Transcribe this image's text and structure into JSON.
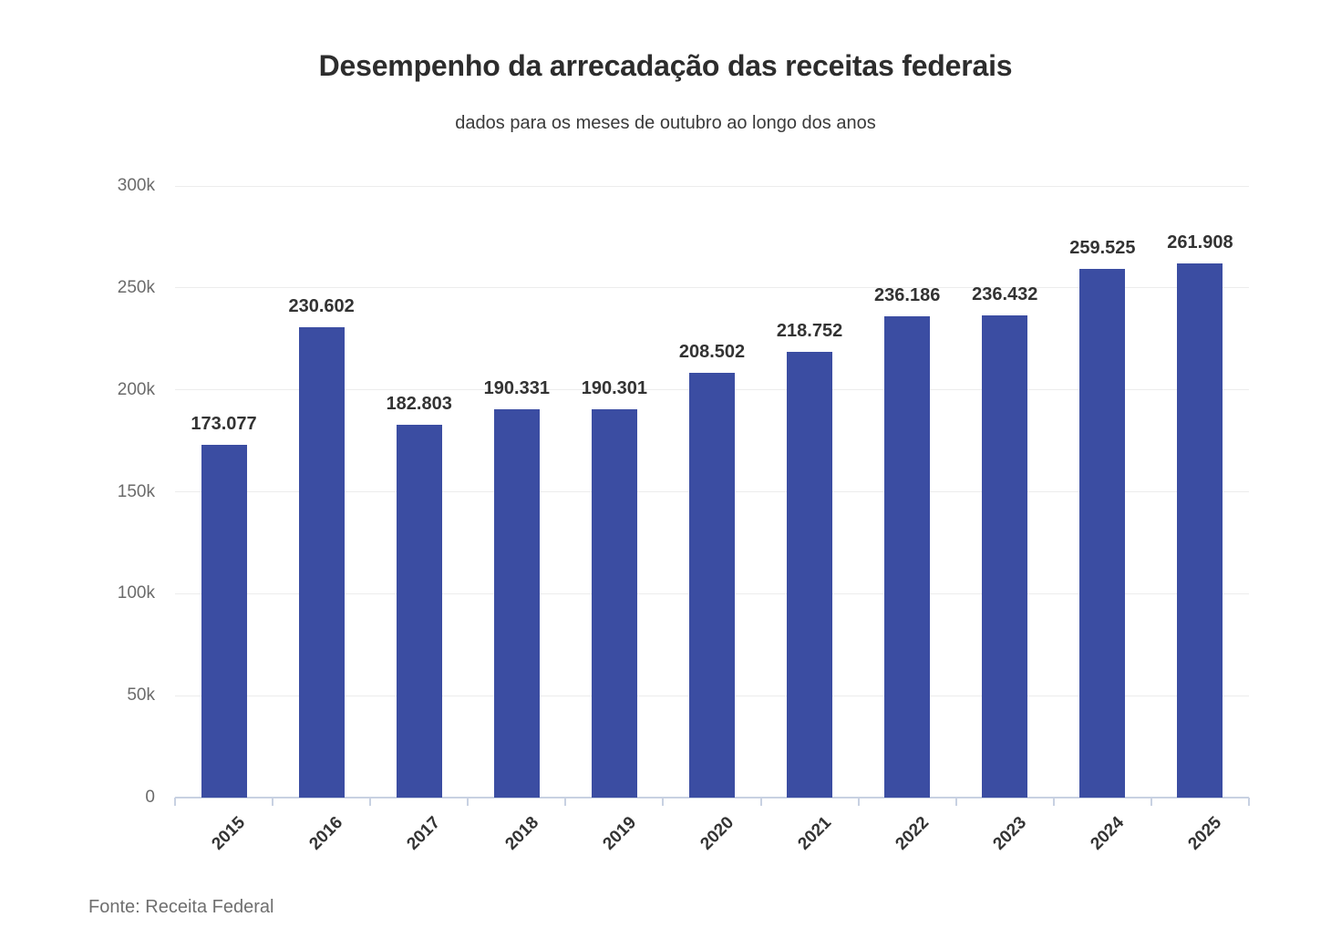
{
  "chart_data": {
    "type": "bar",
    "title": "Desempenho da arrecadação das receitas federais",
    "subtitle": "dados para os meses de outubro ao longo dos anos",
    "source": "Fonte: Receita Federal",
    "categories": [
      "2015",
      "2016",
      "2017",
      "2018",
      "2019",
      "2020",
      "2021",
      "2022",
      "2023",
      "2024",
      "2025"
    ],
    "values": [
      173077,
      230602,
      182803,
      190331,
      190301,
      208502,
      218752,
      236186,
      236432,
      259525,
      261908
    ],
    "value_labels": [
      "173.077",
      "230.602",
      "182.803",
      "190.331",
      "190.301",
      "208.502",
      "218.752",
      "236.186",
      "236.432",
      "259.525",
      "261.908"
    ],
    "xlabel": "",
    "ylabel": "",
    "ylim": [
      0,
      300000
    ],
    "ytick_values": [
      0,
      50000,
      100000,
      150000,
      200000,
      250000,
      300000
    ],
    "ytick_labels": [
      "0",
      "50k",
      "100k",
      "150k",
      "200k",
      "250k",
      "300k"
    ],
    "bar_color": "#3b4da2",
    "grid": true,
    "gridline_color": "#ececec",
    "axis_color": "#c8d1e2",
    "legend_position": "none"
  }
}
